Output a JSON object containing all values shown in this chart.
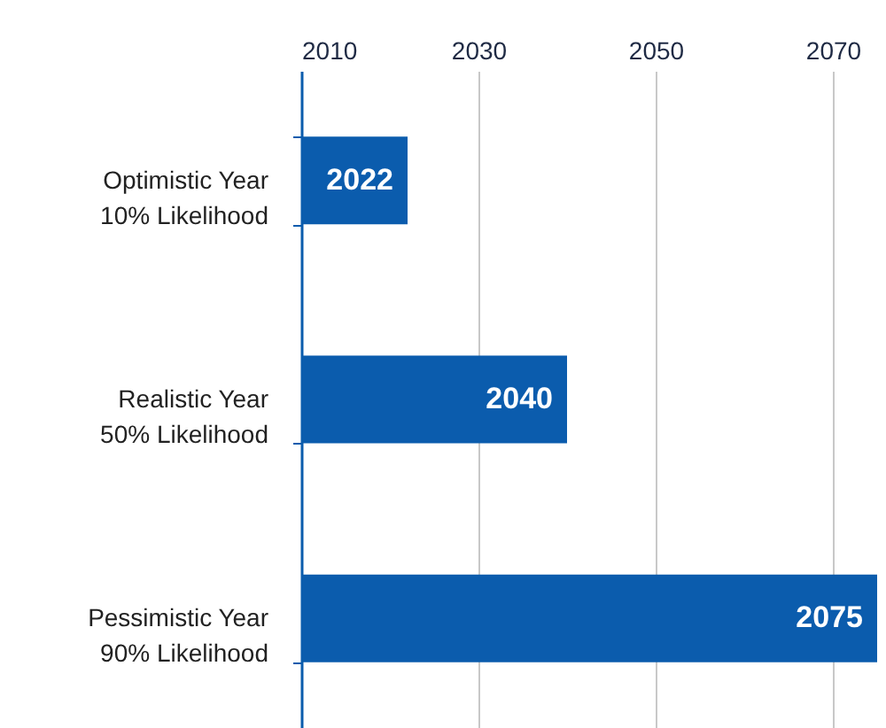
{
  "chart_data": {
    "type": "bar",
    "orientation": "horizontal",
    "categories": [
      "Optimistic Year\n10% Likelihood",
      "Realistic Year\n50% Likelihood",
      "Pessimistic Year\n90% Likelihood"
    ],
    "values": [
      2022,
      2040,
      2075
    ],
    "color": "#0b5cad",
    "xlim": [
      2010,
      2076
    ],
    "xticks": [
      2010,
      2030,
      2050,
      2070
    ],
    "grid": "x",
    "data_labels": true
  }
}
